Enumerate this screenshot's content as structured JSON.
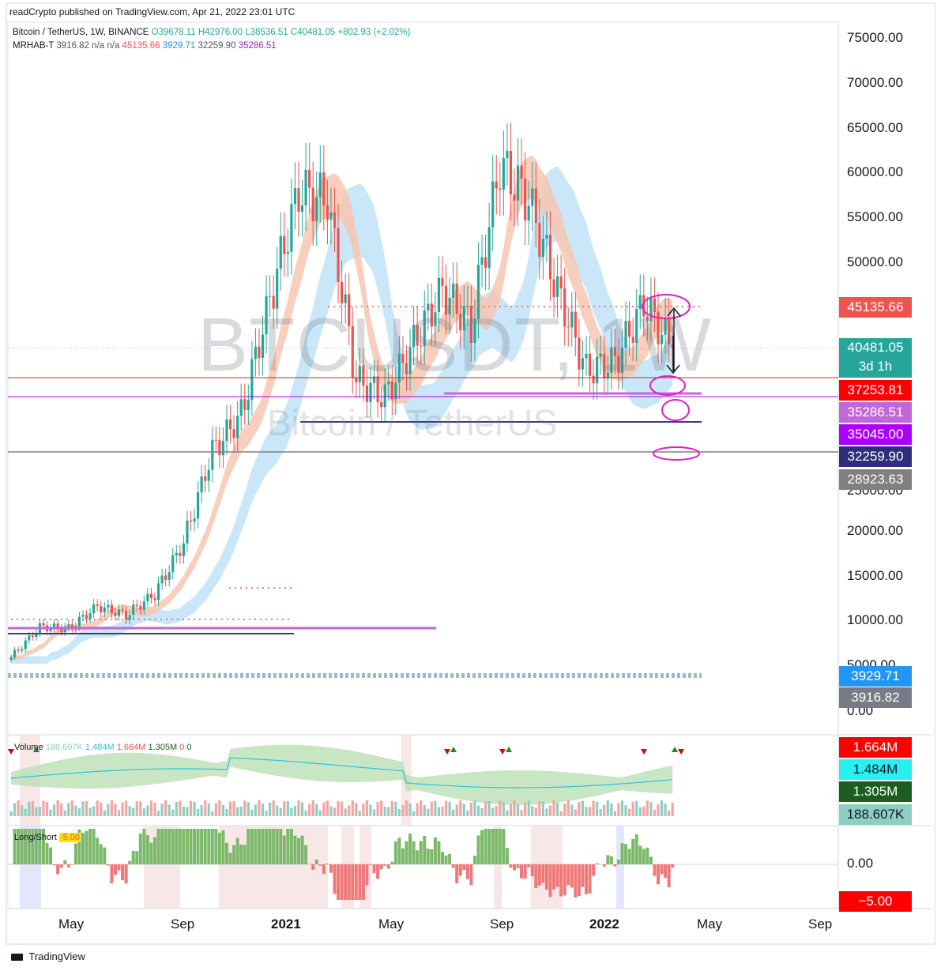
{
  "header": {
    "published": "readCrypto published on TradingView.com, Apr 21, 2022 23:01 UTC",
    "symbol": "Bitcoin / TetherUS, 1W, BINANCE",
    "open": "O39678.11",
    "high": "H42976.00",
    "low": "L38536.51",
    "close": "C40481.05",
    "change": "+802.93 (+2.02%)",
    "indicator_name": "MRHAB-T",
    "indicator_v1": "3916.82",
    "indicator_na": "n/a n/a",
    "indicator_v2": "45135.66",
    "indicator_v3": "3929.71",
    "indicator_v4": "32259.90",
    "indicator_v5": "35286.51"
  },
  "watermark": {
    "symbol": "BTCUSDT, 1W",
    "name": "Bitcoin / TetherUS"
  },
  "price_axis": {
    "labels": [
      "75000.00",
      "70000.00",
      "65000.00",
      "60000.00",
      "55000.00",
      "50000.00",
      "20000.00",
      "15000.00",
      "10000.00",
      "0.00"
    ],
    "partial_labels": [
      "5000.00",
      "25000.00"
    ]
  },
  "price_tags": [
    {
      "id": "tag-45135",
      "text": "45135.66",
      "bg": "#ef5350"
    },
    {
      "id": "tag-40481",
      "text": "40481.05",
      "sub": "3d 1h",
      "bg": "#26a69a"
    },
    {
      "id": "tag-37253",
      "text": "37253.81",
      "bg": "#ff0000"
    },
    {
      "id": "tag-35286",
      "text": "35286.51",
      "bg": "#c068d8"
    },
    {
      "id": "tag-35045",
      "text": "35045.00",
      "bg": "#aa00ff"
    },
    {
      "id": "tag-32259",
      "text": "32259.90",
      "bg": "#2e2e7a"
    },
    {
      "id": "tag-28923",
      "text": "28923.63",
      "bg": "#808080"
    },
    {
      "id": "tag-3929",
      "text": "3929.71",
      "bg": "#2196f3"
    },
    {
      "id": "tag-3916",
      "text": "3916.82",
      "bg": "#787b86"
    }
  ],
  "volume": {
    "label": "Volume",
    "v1": "188.607K",
    "v2": "1.484M",
    "v3": "1.664M",
    "v4": "1.305M",
    "z1": "0",
    "z2": "0",
    "tags": [
      {
        "text": "1.664M",
        "bg": "#ff0000"
      },
      {
        "text": "1.484M",
        "bg": "#26f0f0",
        "fg": "#131722"
      },
      {
        "text": "1.305M",
        "bg": "#1b5e20"
      },
      {
        "text": "188.607K",
        "bg": "#8ccfc2",
        "fg": "#131722"
      }
    ]
  },
  "longshort": {
    "label": "Long/Short",
    "value": "-5.00",
    "axis_zero": "0.00",
    "tag": {
      "text": "−5.00",
      "bg": "#ff0000"
    }
  },
  "time_axis": [
    "May",
    "Sep",
    "2021",
    "May",
    "Sep",
    "2022",
    "May",
    "Sep"
  ],
  "footer": {
    "brand": "TradingView",
    "logo_icon": "tradingview-logo-icon"
  },
  "chart_data": {
    "type": "candlestick",
    "title": "Bitcoin / TetherUS, 1W, BINANCE",
    "interval": "1W",
    "ylim": [
      0,
      77000
    ],
    "approx_weekly_close_path": [
      {
        "date": "2020-03",
        "close": 6000
      },
      {
        "date": "2020-05",
        "close": 9400
      },
      {
        "date": "2020-07",
        "close": 9200
      },
      {
        "date": "2020-08",
        "close": 11700
      },
      {
        "date": "2020-09",
        "close": 10700
      },
      {
        "date": "2020-10",
        "close": 13100
      },
      {
        "date": "2020-11",
        "close": 18800
      },
      {
        "date": "2020-12",
        "close": 29000
      },
      {
        "date": "2021-01",
        "close": 33000
      },
      {
        "date": "2021-02",
        "close": 46000
      },
      {
        "date": "2021-03",
        "close": 58000
      },
      {
        "date": "2021-04",
        "close": 57000
      },
      {
        "date": "2021-05",
        "close": 37000
      },
      {
        "date": "2021-06",
        "close": 35000
      },
      {
        "date": "2021-07",
        "close": 41000
      },
      {
        "date": "2021-08",
        "close": 47000
      },
      {
        "date": "2021-09",
        "close": 43000
      },
      {
        "date": "2021-10",
        "close": 61000
      },
      {
        "date": "2021-11",
        "close": 57000
      },
      {
        "date": "2021-12",
        "close": 47000
      },
      {
        "date": "2022-01",
        "close": 38000
      },
      {
        "date": "2022-02",
        "close": 39000
      },
      {
        "date": "2022-03",
        "close": 45500
      },
      {
        "date": "2022-04",
        "close": 40481
      }
    ],
    "last_bar": {
      "open": 39678.11,
      "high": 42976.0,
      "low": 38536.51,
      "close": 40481.05
    },
    "horizontal_levels": [
      45135.66,
      37253.81,
      35286.51,
      35045.0,
      32259.9,
      28923.63,
      3929.71,
      3916.82
    ],
    "volume_scale_labels": [
      "1.664M",
      "1.484M",
      "1.305M",
      "188.607K"
    ],
    "longshort_range": [
      -5,
      5
    ]
  }
}
